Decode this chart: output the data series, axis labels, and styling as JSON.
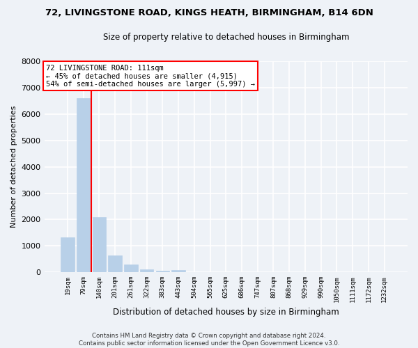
{
  "title": "72, LIVINGSTONE ROAD, KINGS HEATH, BIRMINGHAM, B14 6DN",
  "subtitle": "Size of property relative to detached houses in Birmingham",
  "xlabel": "Distribution of detached houses by size in Birmingham",
  "ylabel": "Number of detached properties",
  "bar_labels": [
    "19sqm",
    "79sqm",
    "140sqm",
    "201sqm",
    "261sqm",
    "322sqm",
    "383sqm",
    "443sqm",
    "504sqm",
    "565sqm",
    "625sqm",
    "686sqm",
    "747sqm",
    "807sqm",
    "868sqm",
    "929sqm",
    "990sqm",
    "1050sqm",
    "1111sqm",
    "1172sqm",
    "1232sqm"
  ],
  "bar_values": [
    1320,
    6600,
    2080,
    640,
    290,
    120,
    60,
    90,
    0,
    0,
    0,
    0,
    0,
    0,
    0,
    0,
    0,
    0,
    0,
    0,
    0
  ],
  "bar_color": "#b8d0e8",
  "bar_edge_color": "#b8d0e8",
  "vline_x": 1.5,
  "vline_color": "red",
  "ylim": [
    0,
    8000
  ],
  "yticks": [
    0,
    1000,
    2000,
    3000,
    4000,
    5000,
    6000,
    7000,
    8000
  ],
  "annotation_text": "72 LIVINGSTONE ROAD: 111sqm\n← 45% of detached houses are smaller (4,915)\n54% of semi-detached houses are larger (5,997) →",
  "annotation_box_color": "#ffffff",
  "annotation_box_edge": "red",
  "footer_line1": "Contains HM Land Registry data © Crown copyright and database right 2024.",
  "footer_line2": "Contains public sector information licensed under the Open Government Licence v3.0.",
  "background_color": "#eef2f7",
  "plot_bg_color": "#eef2f7",
  "grid_color": "#ffffff"
}
